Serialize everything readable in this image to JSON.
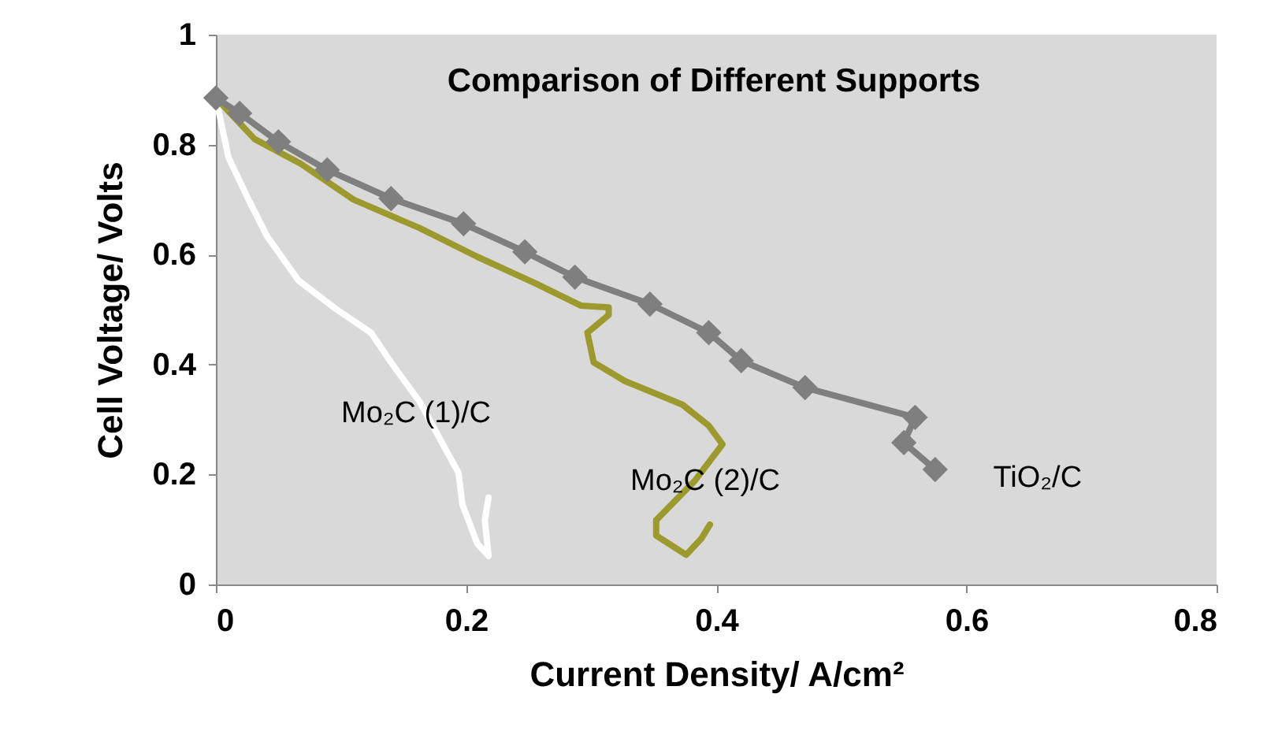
{
  "chart_data": {
    "type": "line",
    "title": "Comparison of Different Supports",
    "xlabel": "Current Density/ A/cm²",
    "ylabel": "Cell Voltage/ Volts",
    "xlim": [
      0,
      0.8
    ],
    "xticks": [
      0,
      0.2,
      0.4,
      0.6,
      0.8
    ],
    "ylim": [
      0,
      1
    ],
    "yticks": [
      0,
      0.2,
      0.4,
      0.6,
      0.8,
      1
    ],
    "grid": false,
    "line_style": "solid",
    "series": [
      {
        "name": "Mo₂C (1)/C",
        "color": "#ffffff",
        "marker": "none",
        "x": [
          0,
          0.01,
          0.025,
          0.041,
          0.066,
          0.096,
          0.124,
          0.14,
          0.163,
          0.18,
          0.194,
          0.197,
          0.209,
          0.218,
          0.215,
          0.218
        ],
        "values": [
          0.885,
          0.777,
          0.705,
          0.633,
          0.553,
          0.501,
          0.458,
          0.404,
          0.332,
          0.261,
          0.203,
          0.146,
          0.074,
          0.052,
          0.117,
          0.158
        ]
      },
      {
        "name": "Mo₂C (2)/C",
        "color": "#9c9a2e",
        "marker": "none",
        "x": [
          0,
          0.031,
          0.068,
          0.11,
          0.163,
          0.209,
          0.256,
          0.292,
          0.314,
          0.314,
          0.297,
          0.302,
          0.327,
          0.373,
          0.394,
          0.405,
          0.383,
          0.352,
          0.352,
          0.376,
          0.388,
          0.395
        ],
        "values": [
          0.885,
          0.81,
          0.765,
          0.7,
          0.648,
          0.596,
          0.547,
          0.507,
          0.504,
          0.49,
          0.458,
          0.404,
          0.37,
          0.327,
          0.289,
          0.255,
          0.189,
          0.117,
          0.089,
          0.054,
          0.083,
          0.109
        ]
      },
      {
        "name": "TiO₂/C",
        "color": "#7f7f7f",
        "marker": "diamond",
        "x": [
          0,
          0.019,
          0.05,
          0.089,
          0.14,
          0.198,
          0.247,
          0.287,
          0.347,
          0.394,
          0.42,
          0.471,
          0.559,
          0.55,
          0.575
        ],
        "values": [
          0.885,
          0.857,
          0.805,
          0.754,
          0.702,
          0.656,
          0.605,
          0.559,
          0.51,
          0.458,
          0.407,
          0.358,
          0.304,
          0.258,
          0.209
        ]
      }
    ]
  }
}
